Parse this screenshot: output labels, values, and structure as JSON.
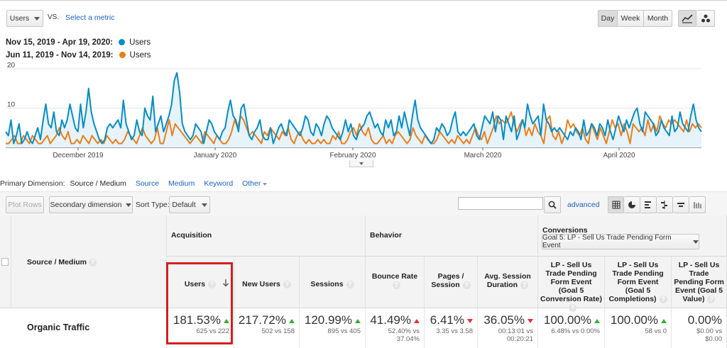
{
  "metric_selector": {
    "value": "Users",
    "vs": "VS.",
    "select_metric": "Select a metric"
  },
  "granularity": {
    "day": "Day",
    "week": "Week",
    "month": "Month"
  },
  "legend": [
    {
      "range": "Nov 15, 2019 - Apr 19, 2020:",
      "name": "Users",
      "color": "#058dc7"
    },
    {
      "range": "Jun 11, 2019 - Nov 14, 2019:",
      "name": "Users",
      "color": "#ed7e17"
    }
  ],
  "chart_data": {
    "type": "line",
    "ylim": [
      0,
      20
    ],
    "yticks": [
      {
        "label": "20",
        "value": 20
      },
      {
        "label": "10",
        "value": 10
      }
    ],
    "x_tick_labels": [
      "December 2019",
      "January 2020",
      "February 2020",
      "March 2020",
      "April 2020"
    ],
    "series": [
      {
        "name": "Users",
        "color": "#058dc7",
        "values": [
          4,
          3,
          7,
          1,
          3,
          6,
          1,
          2,
          4,
          2,
          1,
          3,
          5,
          2,
          7,
          11,
          6,
          5,
          9,
          4,
          3,
          7,
          5,
          7,
          11,
          8,
          5,
          4,
          11,
          5,
          9,
          15,
          9,
          6,
          4,
          2,
          1,
          2,
          5,
          6,
          5,
          6,
          7,
          5,
          12,
          6,
          4,
          2,
          3,
          7,
          4,
          3,
          10,
          8,
          7,
          13,
          4,
          6,
          8,
          4,
          6,
          8,
          11,
          17,
          19,
          14,
          6,
          4,
          3,
          2,
          3,
          6,
          5,
          4,
          1,
          4,
          7,
          6,
          4,
          3,
          2,
          4,
          5,
          9,
          12,
          8,
          7,
          4,
          10,
          11,
          7,
          3,
          2,
          4,
          5,
          7,
          3,
          2,
          2,
          5,
          1,
          3,
          5,
          6,
          4,
          3,
          7,
          6,
          5,
          4,
          3,
          5,
          8,
          7,
          4,
          3,
          6,
          5,
          3,
          6,
          8,
          7,
          5,
          4,
          3,
          2,
          4,
          7,
          4,
          6,
          3,
          2,
          4,
          5,
          6,
          8,
          9,
          7,
          5,
          6,
          4,
          3,
          7,
          5,
          7,
          3,
          4,
          8,
          5,
          9,
          6,
          3,
          8,
          12,
          7,
          5,
          4,
          3,
          2,
          1,
          2,
          5,
          4,
          6,
          5,
          3,
          4,
          7,
          9,
          4,
          3,
          4,
          3,
          4,
          5,
          6,
          3,
          2,
          5,
          8,
          7,
          6,
          9,
          4,
          8,
          7,
          2,
          8,
          6,
          4,
          8,
          2,
          4,
          7,
          5,
          11,
          8,
          6,
          7,
          8,
          3,
          11,
          7,
          6,
          4,
          5,
          4,
          5,
          4,
          3,
          2,
          4,
          3,
          5,
          4,
          2,
          7,
          3,
          4,
          6,
          5,
          3,
          6,
          5,
          3,
          7,
          4,
          2,
          5,
          8,
          6,
          4,
          7,
          5,
          7,
          9,
          10,
          6,
          4,
          9,
          8,
          7,
          6,
          3,
          4,
          7,
          5,
          4,
          3,
          8,
          4,
          5,
          9,
          6,
          5,
          4,
          8,
          11,
          7,
          5,
          4
        ]
      },
      {
        "name": "Users",
        "color": "#ed7e17",
        "values": [
          1,
          1,
          2,
          3,
          1,
          1,
          3,
          2,
          1,
          3,
          2,
          1,
          1,
          2,
          3,
          1,
          2,
          3,
          5,
          3,
          2,
          4,
          1,
          1,
          2,
          1,
          3,
          2,
          1,
          3,
          2,
          1,
          2,
          1,
          3,
          2,
          1,
          2,
          1,
          1,
          2,
          4,
          3,
          2,
          1,
          3,
          5,
          3,
          2,
          1,
          2,
          5,
          1,
          1,
          4,
          7,
          3,
          6,
          5,
          4,
          3,
          2,
          1,
          2,
          3,
          2,
          1,
          4,
          3,
          2,
          1,
          3,
          2,
          1,
          1,
          2,
          4,
          7,
          5,
          8,
          7,
          5,
          3,
          4,
          3,
          2,
          1,
          4,
          3,
          5,
          4,
          3,
          2,
          4,
          3,
          5,
          2,
          1,
          3,
          4,
          2,
          1,
          2,
          1,
          1,
          2,
          1,
          2,
          1,
          1,
          3,
          2,
          4,
          1,
          1,
          2,
          4,
          5,
          3,
          6,
          4,
          3,
          5,
          2,
          1,
          1,
          2,
          3,
          1,
          2,
          1,
          3,
          4,
          3,
          2,
          1,
          2,
          5,
          3,
          2,
          1,
          3,
          2,
          1,
          1,
          2,
          4,
          3,
          2,
          1,
          2,
          1,
          3,
          2,
          1,
          2,
          1,
          3,
          5,
          3,
          2,
          4,
          1,
          3,
          5,
          8,
          6,
          7,
          6,
          7,
          9,
          6,
          4,
          6,
          7,
          3,
          5,
          3,
          6,
          4,
          3,
          1,
          7,
          8,
          3,
          2,
          4,
          1,
          3,
          7,
          5,
          6,
          4,
          3,
          5,
          2,
          1,
          6,
          4,
          2,
          5,
          3,
          1,
          4,
          7,
          5,
          6,
          3,
          6,
          4,
          1,
          6,
          5,
          4,
          5,
          3,
          7,
          4,
          6,
          4,
          8,
          6,
          5,
          7,
          6,
          7,
          6,
          5,
          4,
          7,
          4,
          6,
          5,
          6,
          5
        ]
      }
    ]
  },
  "primary_dimension": {
    "label": "Primary Dimension:",
    "active": "Source / Medium",
    "options": [
      "Source",
      "Medium",
      "Keyword",
      "Other"
    ]
  },
  "toolbar": {
    "plot_rows": "Plot Rows",
    "secondary": "Secondary dimension",
    "sort_type_label": "Sort Type:",
    "sort_value": "Default",
    "advanced": "advanced"
  },
  "table": {
    "dim_header": "Source / Medium",
    "groups": {
      "acquisition": "Acquisition",
      "behavior": "Behavior",
      "conversions": "Conversions",
      "goal_select": "Goal 5: LP - Sell Us Trade Pending Form Event"
    },
    "columns": [
      {
        "title": "Users",
        "value": "181.53%",
        "sub": "625 vs 222",
        "dir": "up"
      },
      {
        "title": "New Users",
        "value": "217.72%",
        "sub": "502 vs 158",
        "dir": "up"
      },
      {
        "title": "Sessions",
        "value": "120.99%",
        "sub": "895 vs 405",
        "dir": "up"
      },
      {
        "title": "Bounce Rate",
        "value": "41.49%",
        "sub": "52.40% vs 37.04%",
        "dir": "up-red"
      },
      {
        "title": "Pages / Session",
        "value": "6.41%",
        "sub": "3.35 vs 3.58",
        "dir": "down"
      },
      {
        "title": "Avg. Session Duration",
        "value": "36.05%",
        "sub": "00:13:01 vs 00:20:21",
        "dir": "down"
      },
      {
        "title": "LP - Sell Us Trade Pending Form Event (Goal 5 Conversion Rate)",
        "value": "100.00%",
        "sub": "6.48% vs 0.00%",
        "dir": "up"
      },
      {
        "title": "LP - Sell Us Trade Pending Form Event (Goal 5 Completions)",
        "value": "100.00%",
        "sub": "58 vs 0",
        "dir": "up"
      },
      {
        "title": "LP - Sell Us Trade Pending Form Event (Goal 5 Value)",
        "value": "0.00%",
        "sub": "$0.00 vs $0.00",
        "dir": "none"
      }
    ],
    "row_label": "Organic Traffic"
  }
}
